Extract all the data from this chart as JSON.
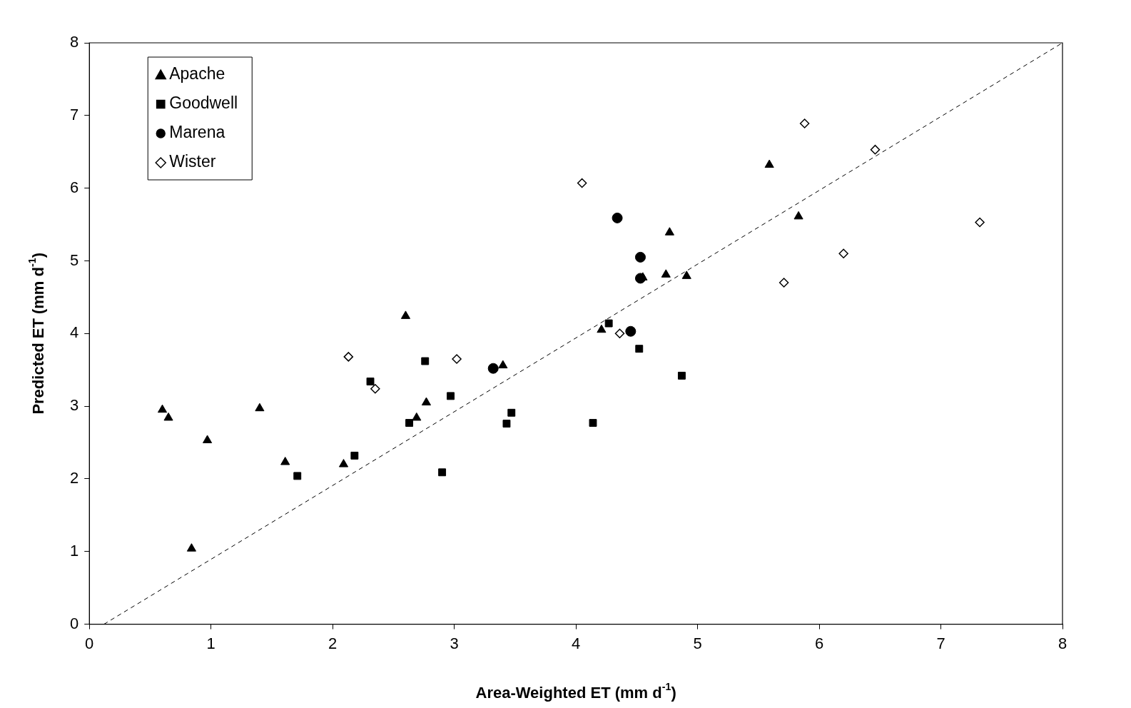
{
  "chart_data": {
    "type": "scatter",
    "xlabel": "Area-Weighted ET (mm d$^{-1}$)",
    "ylabel": "Predicted ET (mm d$^{-1}$)",
    "xlim": [
      0,
      8
    ],
    "ylim": [
      0,
      8
    ],
    "xticks": [
      0,
      1,
      2,
      3,
      4,
      5,
      6,
      7,
      8
    ],
    "yticks": [
      0,
      1,
      2,
      3,
      4,
      5,
      6,
      7,
      8
    ],
    "grid": false,
    "legend": "top left",
    "series": [
      {
        "name": "Apache",
        "color": "#000000",
        "marker": "triangle",
        "x": [
          0.6,
          0.65,
          0.97,
          1.4,
          0.84,
          1.61,
          2.09,
          2.6,
          2.69,
          2.77,
          3.4,
          4.21,
          4.55,
          4.74,
          4.77,
          4.91,
          5.59,
          5.83
        ],
        "values": [
          2.95,
          2.84,
          2.53,
          2.97,
          1.04,
          2.23,
          2.2,
          4.24,
          2.84,
          3.05,
          3.56,
          4.05,
          4.77,
          4.81,
          5.39,
          4.79,
          6.32,
          5.61
        ]
      },
      {
        "name": "Goodwell",
        "color": "#000000",
        "marker": "square",
        "x": [
          1.71,
          2.18,
          2.31,
          2.63,
          2.76,
          2.9,
          2.97,
          3.43,
          3.47,
          4.14,
          4.27,
          4.52,
          4.87
        ],
        "values": [
          2.04,
          2.32,
          3.34,
          2.77,
          3.62,
          2.09,
          3.14,
          2.76,
          2.91,
          2.77,
          4.14,
          3.79,
          3.42
        ]
      },
      {
        "name": "Marena",
        "color": "#000000",
        "marker": "circle",
        "x": [
          3.32,
          4.34,
          4.53,
          4.53,
          4.45
        ],
        "values": [
          3.52,
          5.59,
          5.05,
          4.76,
          4.03
        ]
      },
      {
        "name": "Wister",
        "color": "#000000",
        "marker": "diamond",
        "x": [
          2.13,
          2.35,
          3.02,
          4.05,
          4.36,
          5.71,
          5.88,
          6.2,
          6.46,
          7.32
        ],
        "values": [
          3.68,
          3.24,
          3.65,
          6.07,
          4.0,
          4.7,
          6.89,
          5.1,
          6.53,
          5.53
        ]
      },
      {
        "type": "line",
        "color": "#000000",
        "marker": "none",
        "line_style": "dashed",
        "x": [
          0.12,
          8
        ],
        "values": [
          0,
          8
        ]
      }
    ]
  }
}
